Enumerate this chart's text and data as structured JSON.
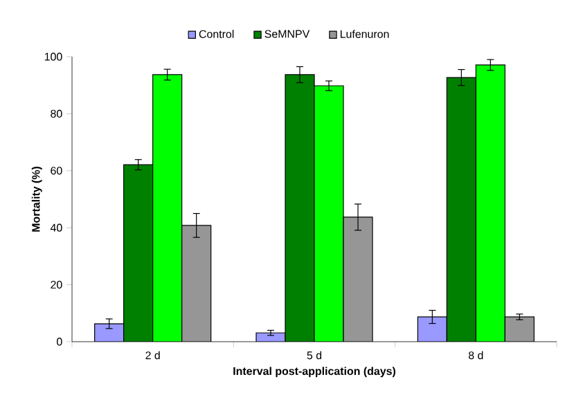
{
  "chart_data": {
    "type": "bar",
    "xlabel": "Interval post-application (days)",
    "ylabel": "Mortality (%)",
    "categories": [
      "2 d",
      "5 d",
      "8 d"
    ],
    "series": [
      {
        "name": "Control",
        "color": "#9999ff",
        "values": [
          6.3,
          3.1,
          8.7
        ],
        "errors": [
          1.7,
          0.9,
          2.3
        ]
      },
      {
        "name": "SeMNPV",
        "color": "#008000",
        "values": [
          62.1,
          93.7,
          92.7
        ],
        "errors": [
          1.8,
          2.8,
          2.8
        ]
      },
      {
        "color": "#00ff00",
        "values": [
          93.7,
          89.8,
          97.1
        ],
        "errors": [
          1.9,
          1.7,
          1.9
        ]
      },
      {
        "name": "Lufenuron",
        "color": "#969696",
        "values": [
          40.8,
          43.7,
          8.7
        ],
        "errors": [
          4.2,
          4.6,
          1.0
        ]
      }
    ],
    "ylim": [
      0,
      100
    ],
    "yticks": [
      0,
      20,
      40,
      60,
      80,
      100
    ],
    "grid": false,
    "legend": "top"
  }
}
